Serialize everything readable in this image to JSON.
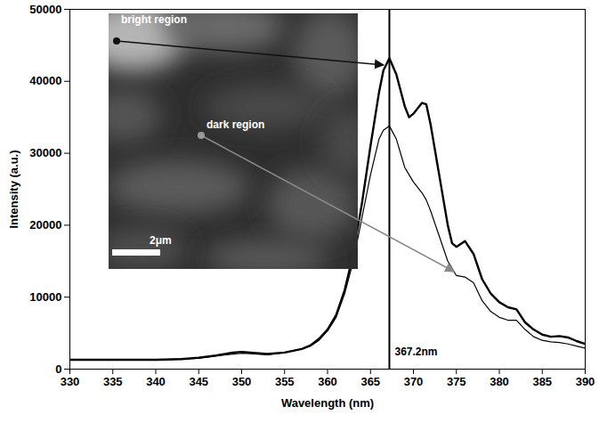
{
  "chart_data": {
    "type": "line",
    "x_label": "Wavelength (nm)",
    "y_label": "Intensity (a.u.)",
    "x": [
      330,
      335,
      340,
      343,
      345,
      347,
      349,
      350,
      351,
      353,
      355,
      357,
      358,
      359,
      360,
      361,
      362,
      363,
      364,
      365,
      366,
      366.5,
      367.2,
      368,
      369,
      369.5,
      370,
      371,
      371.5,
      372,
      373,
      374,
      374.5,
      375,
      376,
      377,
      378,
      379,
      380,
      381,
      382,
      383,
      384,
      385,
      386,
      387,
      388,
      389,
      390
    ],
    "series": [
      {
        "name": "bright region",
        "color": "#000000",
        "line_style": "solid",
        "marker": "none",
        "values": [
          1300,
          1300,
          1300,
          1400,
          1600,
          1900,
          2300,
          2400,
          2300,
          2100,
          2300,
          2800,
          3300,
          4200,
          5500,
          7500,
          11000,
          16000,
          23000,
          31000,
          38500,
          41500,
          43200,
          41000,
          36500,
          35000,
          35500,
          37000,
          36800,
          34000,
          27000,
          20000,
          17500,
          17000,
          17800,
          16000,
          12500,
          10500,
          9300,
          8600,
          8300,
          6500,
          5500,
          4800,
          4500,
          4600,
          4400,
          3900,
          3500
        ]
      },
      {
        "name": "dark region",
        "color": "#000000",
        "line_style": "solid",
        "marker": "none",
        "values": [
          1300,
          1300,
          1300,
          1400,
          1500,
          1800,
          2100,
          2200,
          2150,
          2000,
          2300,
          2800,
          3200,
          4000,
          5300,
          7200,
          10500,
          15000,
          21000,
          27000,
          32000,
          33200,
          33800,
          32000,
          28000,
          27000,
          26000,
          24500,
          23500,
          22000,
          18500,
          15000,
          14000,
          13000,
          12800,
          12000,
          9500,
          8000,
          7200,
          6800,
          6800,
          5500,
          4500,
          4000,
          3800,
          3700,
          3500,
          3200,
          2900
        ]
      }
    ],
    "xlim": [
      330,
      390
    ],
    "xticks": [
      330,
      335,
      340,
      345,
      350,
      355,
      360,
      365,
      370,
      375,
      380,
      385,
      390
    ],
    "ylim": [
      0,
      50000
    ],
    "yticks": [
      0,
      10000,
      20000,
      30000,
      40000,
      50000
    ],
    "grid": false,
    "annotations": [
      {
        "x": 367.2,
        "text": "367.2nm"
      }
    ],
    "inset": {
      "scale_bar": "2μm"
    }
  }
}
